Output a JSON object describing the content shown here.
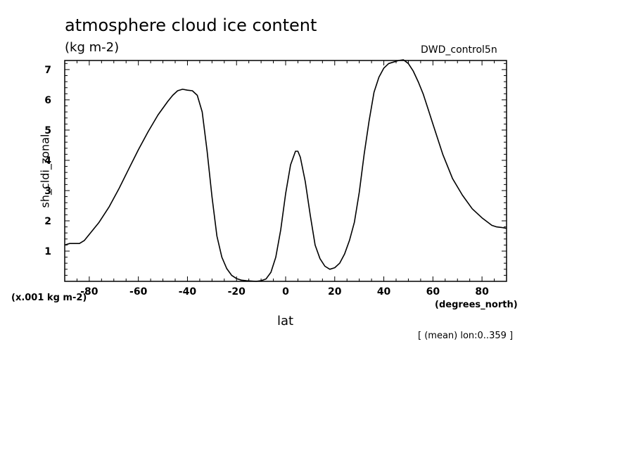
{
  "chart_data": {
    "type": "line",
    "title": "atmosphere cloud ice content",
    "units_label": "(kg m-2)",
    "dataset_label": "DWD_control5n",
    "scale_note": "(x.001 kg m-2)",
    "xlabel": "lat",
    "x_units": "(degrees_north)",
    "ylabel": "sh_cldi_zonal",
    "footnote": "[ (mean) lon:0..359 ]",
    "xlim": [
      -90,
      90
    ],
    "ylim": [
      0,
      7.3
    ],
    "x_ticks": [
      -80,
      -60,
      -40,
      -20,
      0,
      20,
      40,
      60,
      80
    ],
    "y_ticks": [
      1,
      2,
      3,
      4,
      5,
      6,
      7
    ],
    "grid": false,
    "series": [
      {
        "x": [
          -90,
          -88,
          -86,
          -84,
          -82,
          -80,
          -76,
          -72,
          -68,
          -64,
          -60,
          -56,
          -52,
          -48,
          -46,
          -44,
          -42,
          -40,
          -38,
          -36,
          -34,
          -32,
          -30,
          -28,
          -26,
          -24,
          -22,
          -20,
          -18,
          -16,
          -14,
          -12,
          -10,
          -8,
          -6,
          -4,
          -2,
          0,
          2,
          4,
          5,
          6,
          8,
          10,
          12,
          14,
          16,
          18,
          20,
          22,
          24,
          26,
          28,
          30,
          32,
          34,
          36,
          38,
          40,
          42,
          44,
          46,
          48,
          50,
          52,
          54,
          56,
          58,
          60,
          64,
          68,
          72,
          76,
          80,
          84,
          86,
          88,
          90
        ],
        "y": [
          1.2,
          1.25,
          1.25,
          1.25,
          1.35,
          1.55,
          1.95,
          2.45,
          3.05,
          3.7,
          4.35,
          4.95,
          5.5,
          5.95,
          6.15,
          6.3,
          6.35,
          6.32,
          6.3,
          6.15,
          5.6,
          4.3,
          2.8,
          1.5,
          0.8,
          0.42,
          0.2,
          0.09,
          0.04,
          0.02,
          0.01,
          0.0,
          0.02,
          0.08,
          0.3,
          0.8,
          1.7,
          2.9,
          3.85,
          4.3,
          4.3,
          4.1,
          3.3,
          2.2,
          1.2,
          0.75,
          0.5,
          0.4,
          0.45,
          0.6,
          0.9,
          1.35,
          1.95,
          2.95,
          4.2,
          5.3,
          6.25,
          6.75,
          7.05,
          7.2,
          7.25,
          7.3,
          7.32,
          7.2,
          6.95,
          6.6,
          6.2,
          5.7,
          5.2,
          4.2,
          3.4,
          2.85,
          2.4,
          2.1,
          1.85,
          1.8,
          1.78,
          1.75
        ]
      }
    ]
  }
}
